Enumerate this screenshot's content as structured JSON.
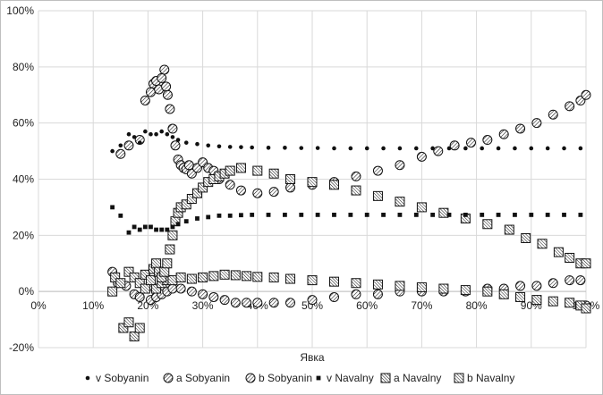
{
  "chart_data": {
    "type": "scatter",
    "title": "",
    "xlabel": "Явка",
    "ylabel": "",
    "xlim": [
      0,
      100
    ],
    "ylim": [
      -20,
      100
    ],
    "x_ticks": [
      "0%",
      "10%",
      "20%",
      "30%",
      "40%",
      "50%",
      "60%",
      "70%",
      "80%",
      "90%",
      "100%"
    ],
    "y_ticks": [
      "-20%",
      "0%",
      "20%",
      "40%",
      "60%",
      "80%",
      "100%"
    ],
    "grid": true,
    "legend_position": "bottom",
    "series": [
      {
        "name": "v Sobyanin",
        "marker": "small-dot",
        "points": [
          [
            13.5,
            50
          ],
          [
            15,
            52
          ],
          [
            16.5,
            56
          ],
          [
            17.5,
            55
          ],
          [
            18.5,
            53
          ],
          [
            19.5,
            57
          ],
          [
            20.5,
            56
          ],
          [
            21.5,
            56
          ],
          [
            22.5,
            57
          ],
          [
            23.5,
            56
          ],
          [
            24.5,
            55
          ],
          [
            25.5,
            54
          ],
          [
            27,
            53
          ],
          [
            29,
            52.5
          ],
          [
            31,
            52
          ],
          [
            33,
            51.7
          ],
          [
            35,
            51.5
          ],
          [
            37,
            51.4
          ],
          [
            39,
            51.3
          ],
          [
            42,
            51.2
          ],
          [
            45,
            51.2
          ],
          [
            48,
            51.1
          ],
          [
            51,
            51.1
          ],
          [
            54,
            51
          ],
          [
            57,
            51
          ],
          [
            60,
            51
          ],
          [
            63,
            51
          ],
          [
            66,
            51
          ],
          [
            69,
            51
          ],
          [
            72,
            51
          ],
          [
            75,
            51
          ],
          [
            78,
            51
          ],
          [
            81,
            51
          ],
          [
            84,
            51
          ],
          [
            87,
            51
          ],
          [
            90,
            51
          ],
          [
            93,
            51
          ],
          [
            96,
            51
          ],
          [
            99,
            51
          ]
        ]
      },
      {
        "name": "a Sobyanin",
        "marker": "circle-hatched",
        "points": [
          [
            15,
            49
          ],
          [
            16.5,
            52
          ],
          [
            18.5,
            54
          ],
          [
            19.5,
            68
          ],
          [
            20.5,
            71
          ],
          [
            21,
            74
          ],
          [
            21.5,
            75
          ],
          [
            22,
            72
          ],
          [
            22.5,
            76
          ],
          [
            23,
            79
          ],
          [
            23.3,
            73
          ],
          [
            23.6,
            70
          ],
          [
            24,
            65
          ],
          [
            24.5,
            58
          ],
          [
            25,
            52
          ],
          [
            25.5,
            47
          ],
          [
            26,
            45
          ],
          [
            26.5,
            44
          ],
          [
            27,
            43.5
          ],
          [
            27.5,
            45
          ],
          [
            28,
            42
          ],
          [
            29,
            44
          ],
          [
            30,
            46
          ],
          [
            31,
            44
          ],
          [
            32,
            43
          ],
          [
            33,
            40
          ],
          [
            35,
            38
          ],
          [
            37,
            36
          ],
          [
            40,
            35
          ],
          [
            43,
            35.5
          ],
          [
            46,
            37
          ],
          [
            50,
            38
          ],
          [
            54,
            39
          ],
          [
            58,
            41
          ],
          [
            62,
            43
          ],
          [
            66,
            45
          ],
          [
            70,
            48
          ],
          [
            73,
            50
          ],
          [
            76,
            52
          ],
          [
            79,
            53
          ],
          [
            82,
            54
          ],
          [
            85,
            56
          ],
          [
            88,
            58
          ],
          [
            91,
            60
          ],
          [
            94,
            63
          ],
          [
            97,
            66
          ],
          [
            99,
            68
          ],
          [
            100,
            70
          ]
        ]
      },
      {
        "name": "b Sobyanin",
        "marker": "circle-hatched",
        "points": [
          [
            13.5,
            7
          ],
          [
            14.5,
            3
          ],
          [
            16,
            2
          ],
          [
            17.5,
            -1
          ],
          [
            18.5,
            -2
          ],
          [
            19.5,
            1
          ],
          [
            20.5,
            -3
          ],
          [
            21.5,
            -2
          ],
          [
            22.5,
            -1
          ],
          [
            23.5,
            0
          ],
          [
            24.5,
            1
          ],
          [
            26,
            1
          ],
          [
            28,
            0
          ],
          [
            30,
            -1
          ],
          [
            32,
            -2
          ],
          [
            34,
            -3
          ],
          [
            36,
            -4
          ],
          [
            38,
            -4
          ],
          [
            40,
            -4
          ],
          [
            43,
            -4
          ],
          [
            46,
            -4
          ],
          [
            50,
            -3
          ],
          [
            54,
            -2
          ],
          [
            58,
            -1
          ],
          [
            62,
            -1
          ],
          [
            66,
            0
          ],
          [
            70,
            0
          ],
          [
            74,
            0
          ],
          [
            78,
            0
          ],
          [
            82,
            1
          ],
          [
            85,
            1
          ],
          [
            88,
            2
          ],
          [
            91,
            2
          ],
          [
            94,
            3
          ],
          [
            97,
            4
          ],
          [
            99,
            4
          ],
          [
            100,
            -5
          ]
        ]
      },
      {
        "name": "v Navalny",
        "marker": "small-square",
        "points": [
          [
            13.5,
            30
          ],
          [
            15,
            27
          ],
          [
            16.5,
            21
          ],
          [
            17.5,
            23
          ],
          [
            18.5,
            22
          ],
          [
            19.5,
            23
          ],
          [
            20.5,
            23
          ],
          [
            21.5,
            22
          ],
          [
            22.5,
            22
          ],
          [
            23.5,
            22
          ],
          [
            24.5,
            23
          ],
          [
            25.5,
            24
          ],
          [
            27,
            25
          ],
          [
            29,
            26
          ],
          [
            31,
            26.5
          ],
          [
            33,
            27
          ],
          [
            35,
            27
          ],
          [
            37,
            27.2
          ],
          [
            39,
            27.3
          ],
          [
            42,
            27.3
          ],
          [
            45,
            27.3
          ],
          [
            48,
            27.3
          ],
          [
            51,
            27.3
          ],
          [
            54,
            27.3
          ],
          [
            57,
            27.3
          ],
          [
            60,
            27.3
          ],
          [
            63,
            27.3
          ],
          [
            66,
            27.3
          ],
          [
            69,
            27.3
          ],
          [
            72,
            27.3
          ],
          [
            75,
            27.3
          ],
          [
            78,
            27.3
          ],
          [
            81,
            27.3
          ],
          [
            84,
            27.3
          ],
          [
            87,
            27.3
          ],
          [
            90,
            27.3
          ],
          [
            93,
            27.3
          ],
          [
            96,
            27.3
          ],
          [
            99,
            27.3
          ]
        ]
      },
      {
        "name": "a Navalny",
        "marker": "square-hatched",
        "points": [
          [
            13.5,
            0
          ],
          [
            15.5,
            -13
          ],
          [
            16.5,
            -11
          ],
          [
            17.5,
            -16
          ],
          [
            18.5,
            -13
          ],
          [
            19.5,
            1
          ],
          [
            20.5,
            4
          ],
          [
            21,
            8
          ],
          [
            21.5,
            10
          ],
          [
            22,
            7
          ],
          [
            22.5,
            5
          ],
          [
            23,
            7
          ],
          [
            23.5,
            10
          ],
          [
            24,
            15
          ],
          [
            24.5,
            20
          ],
          [
            25,
            25
          ],
          [
            25.5,
            28
          ],
          [
            26,
            30
          ],
          [
            27,
            31
          ],
          [
            28,
            33
          ],
          [
            29,
            35
          ],
          [
            30,
            37
          ],
          [
            31,
            39
          ],
          [
            32,
            40
          ],
          [
            33,
            41
          ],
          [
            34,
            42
          ],
          [
            35,
            43
          ],
          [
            37,
            44
          ],
          [
            40,
            43
          ],
          [
            43,
            42
          ],
          [
            46,
            40
          ],
          [
            50,
            39
          ],
          [
            54,
            38
          ],
          [
            58,
            36
          ],
          [
            62,
            34
          ],
          [
            66,
            32
          ],
          [
            70,
            30
          ],
          [
            74,
            28
          ],
          [
            78,
            26
          ],
          [
            82,
            24
          ],
          [
            86,
            22
          ],
          [
            89,
            19
          ],
          [
            92,
            17
          ],
          [
            95,
            14
          ],
          [
            97,
            12
          ],
          [
            99,
            10
          ],
          [
            100,
            10
          ]
        ]
      },
      {
        "name": "b Navalny",
        "marker": "square-hatched",
        "points": [
          [
            14,
            5
          ],
          [
            15,
            3
          ],
          [
            16.5,
            7
          ],
          [
            17.5,
            5
          ],
          [
            18.5,
            3
          ],
          [
            19.5,
            6
          ],
          [
            20.5,
            2
          ],
          [
            21.5,
            1
          ],
          [
            22.5,
            3
          ],
          [
            23.5,
            4
          ],
          [
            24.5,
            4
          ],
          [
            26,
            5
          ],
          [
            28,
            4.5
          ],
          [
            30,
            5
          ],
          [
            32,
            5.5
          ],
          [
            34,
            6
          ],
          [
            36,
            5.8
          ],
          [
            38,
            5.5
          ],
          [
            40,
            5.2
          ],
          [
            43,
            5
          ],
          [
            46,
            4.5
          ],
          [
            50,
            4
          ],
          [
            54,
            3.5
          ],
          [
            58,
            3
          ],
          [
            62,
            2.5
          ],
          [
            66,
            2
          ],
          [
            70,
            1.5
          ],
          [
            74,
            1
          ],
          [
            78,
            0.5
          ],
          [
            82,
            0
          ],
          [
            85,
            -1
          ],
          [
            88,
            -2
          ],
          [
            91,
            -3
          ],
          [
            94,
            -3.5
          ],
          [
            97,
            -4
          ],
          [
            99,
            -5
          ],
          [
            100,
            -6
          ]
        ]
      }
    ]
  }
}
